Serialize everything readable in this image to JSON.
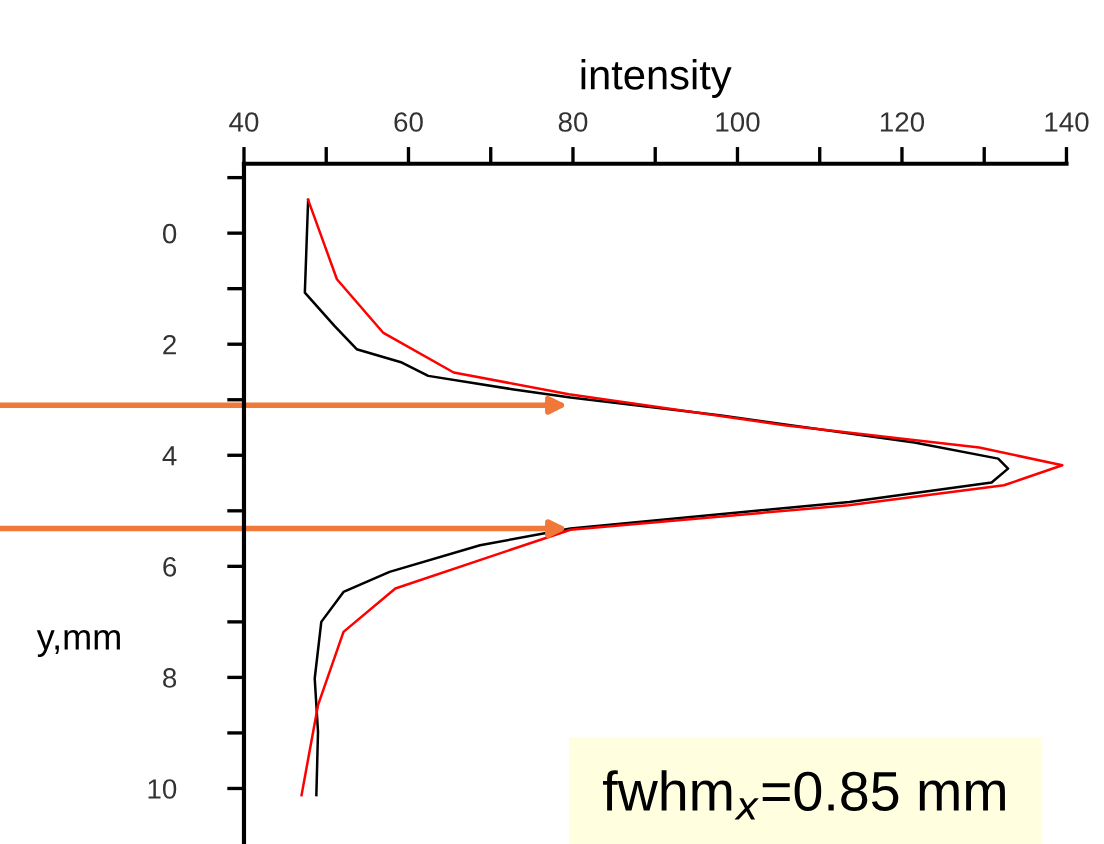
{
  "chart_data": {
    "type": "line",
    "xlabel": "intensity",
    "ylabel": "y,mm",
    "xlim": [
      40,
      140
    ],
    "ylim": [
      11,
      -1.25
    ],
    "xticks": [
      40,
      {
        "value": 50,
        "label": null
      },
      60,
      {
        "value": 70,
        "label": null
      },
      80,
      {
        "value": 90,
        "label": null
      },
      100,
      {
        "value": 110,
        "label": null
      },
      120,
      {
        "value": 130,
        "label": null
      },
      140
    ],
    "yticks": [
      {
        "value": -1,
        "label": null
      },
      0,
      {
        "value": 1,
        "label": null
      },
      2,
      {
        "value": 3,
        "label": null
      },
      4,
      {
        "value": 5,
        "label": null
      },
      6,
      {
        "value": 7,
        "label": null
      },
      8,
      {
        "value": 9,
        "label": null
      },
      10
    ],
    "grid": false,
    "marker": "none",
    "line_style": "solid",
    "series": [
      {
        "color": "#000000",
        "x": [
          47.8,
          47.4,
          51,
          53.7,
          59.2,
          62.4,
          72.6,
          79.7,
          97.8,
          121.5,
          131.7,
          132.9,
          130.9,
          113.6,
          79.7,
          68.7,
          57.7,
          52.1,
          49.4,
          48.6,
          49,
          48.8
        ],
        "values": [
          -0.6,
          1.07,
          1.67,
          2.09,
          2.33,
          2.57,
          2.81,
          2.96,
          3.28,
          3.77,
          4.06,
          4.24,
          4.49,
          4.84,
          5.32,
          5.62,
          6.1,
          6.46,
          7.0,
          8.02,
          8.98,
          10.12
        ]
      },
      {
        "color": "#ff0000",
        "x": [
          47.8,
          51.3,
          56.9,
          65.5,
          79.5,
          105.7,
          129.4,
          139.5,
          132.4,
          113.5,
          79.7,
          58.4,
          52.1,
          49,
          47
        ],
        "values": [
          -0.6,
          0.83,
          1.79,
          2.51,
          2.9,
          3.46,
          3.86,
          4.18,
          4.54,
          4.9,
          5.34,
          6.4,
          7.18,
          8.5,
          10.12
        ]
      }
    ],
    "ref_lines": [
      {
        "axis": "y",
        "value": 3.1,
        "color": "#f07838"
      },
      {
        "axis": "y",
        "value": 5.32,
        "color": "#f07838"
      }
    ],
    "annotations": [
      "fwhm$_{x}$=0.85 mm"
    ]
  }
}
